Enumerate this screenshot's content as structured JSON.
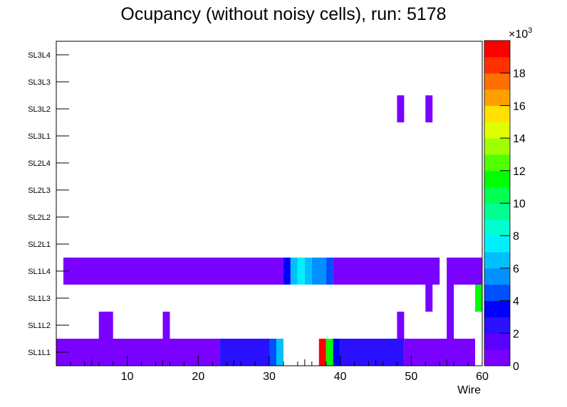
{
  "chart_data": {
    "type": "heatmap",
    "title": "Ocupancy (without noisy cells), run: 5178",
    "xlabel": "Wire",
    "ylabel": "",
    "xlim": [
      0,
      60
    ],
    "x_ticks": [
      10,
      20,
      30,
      40,
      50,
      60
    ],
    "y_categories": [
      "SL1L1",
      "SL1L2",
      "SL1L3",
      "SL1L4",
      "SL2L1",
      "SL2L2",
      "SL2L3",
      "SL2L4",
      "SL3L1",
      "SL3L2",
      "SL3L3",
      "SL3L4"
    ],
    "colorbar": {
      "min": 0,
      "max": 20000,
      "multiplier_label": "×10",
      "multiplier_exponent": "3",
      "ticks": [
        0,
        2,
        4,
        6,
        8,
        10,
        12,
        14,
        16,
        18
      ],
      "palette": [
        "#7a00ff",
        "#5a00ff",
        "#2a10ff",
        "#0000ff",
        "#0050ff",
        "#0090ff",
        "#00c0ff",
        "#00f0ff",
        "#00ffd0",
        "#00ff90",
        "#00ff50",
        "#00ff00",
        "#50ff00",
        "#a0ff00",
        "#e0ff00",
        "#ffe000",
        "#ffa000",
        "#ff7000",
        "#ff3000",
        "#ff0000"
      ]
    },
    "cells": [
      {
        "row": "SL1L1",
        "x0": 0,
        "x1": 23,
        "value": 800
      },
      {
        "row": "SL1L1",
        "x0": 23,
        "x1": 30,
        "value": 2500
      },
      {
        "row": "SL1L1",
        "x0": 30,
        "x1": 31,
        "value": 4200
      },
      {
        "row": "SL1L1",
        "x0": 31,
        "x1": 32,
        "value": 6000
      },
      {
        "row": "SL1L1",
        "x0": 37,
        "x1": 38,
        "value": 19500
      },
      {
        "row": "SL1L1",
        "x0": 38,
        "x1": 39,
        "value": 11500
      },
      {
        "row": "SL1L1",
        "x0": 39,
        "x1": 40,
        "value": 3200
      },
      {
        "row": "SL1L1",
        "x0": 40,
        "x1": 49,
        "value": 2500
      },
      {
        "row": "SL1L1",
        "x0": 49,
        "x1": 59,
        "value": 800
      },
      {
        "row": "SL1L2",
        "x0": 6,
        "x1": 8,
        "value": 800
      },
      {
        "row": "SL1L2",
        "x0": 15,
        "x1": 16,
        "value": 800
      },
      {
        "row": "SL1L2",
        "x0": 48,
        "x1": 49,
        "value": 800
      },
      {
        "row": "SL1L2",
        "x0": 55,
        "x1": 56,
        "value": 800
      },
      {
        "row": "SL1L3",
        "x0": 52,
        "x1": 53,
        "value": 800
      },
      {
        "row": "SL1L3",
        "x0": 55,
        "x1": 56,
        "value": 800
      },
      {
        "row": "SL1L3",
        "x0": 59,
        "x1": 60,
        "value": 11500
      },
      {
        "row": "SL1L4",
        "x0": 1,
        "x1": 32,
        "value": 800
      },
      {
        "row": "SL1L4",
        "x0": 32,
        "x1": 33,
        "value": 3500
      },
      {
        "row": "SL1L4",
        "x0": 33,
        "x1": 34,
        "value": 6800
      },
      {
        "row": "SL1L4",
        "x0": 34,
        "x1": 35,
        "value": 7600
      },
      {
        "row": "SL1L4",
        "x0": 35,
        "x1": 36,
        "value": 6800
      },
      {
        "row": "SL1L4",
        "x0": 36,
        "x1": 38,
        "value": 5800
      },
      {
        "row": "SL1L4",
        "x0": 38,
        "x1": 39,
        "value": 4500
      },
      {
        "row": "SL1L4",
        "x0": 39,
        "x1": 54,
        "value": 800
      },
      {
        "row": "SL1L4",
        "x0": 55,
        "x1": 60,
        "value": 800
      },
      {
        "row": "SL3L2",
        "x0": 48,
        "x1": 49,
        "value": 800
      },
      {
        "row": "SL3L2",
        "x0": 52,
        "x1": 53,
        "value": 800
      }
    ]
  }
}
